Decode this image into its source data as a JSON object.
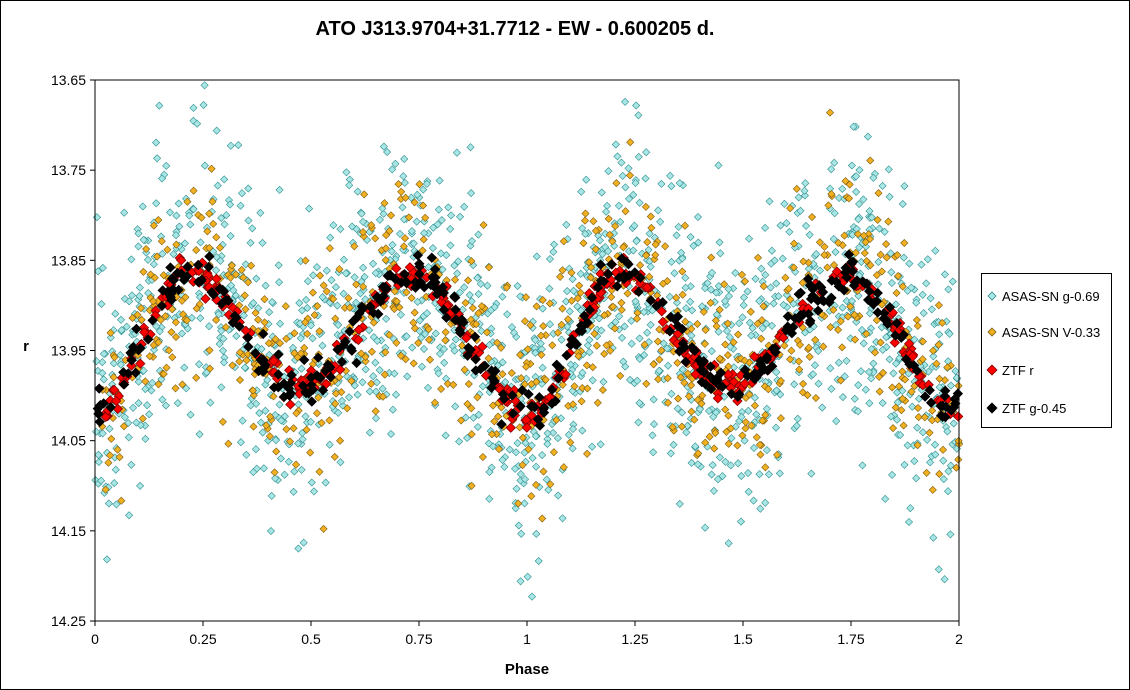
{
  "chart_data": {
    "type": "scatter",
    "title": "ATO J313.9704+31.7712  - EW - 0.600205 d.",
    "xlabel": "Phase",
    "ylabel": "r",
    "xlim": [
      0,
      2
    ],
    "ylim": [
      14.25,
      13.65
    ],
    "y_inverted": true,
    "x_ticks": [
      "0",
      "0.25",
      "0.5",
      "0.75",
      "1",
      "1.25",
      "1.5",
      "1.75",
      "2"
    ],
    "y_ticks": [
      "13.65",
      "13.75",
      "13.85",
      "13.95",
      "14.05",
      "14.15",
      "14.25"
    ],
    "grid": false,
    "legend_position": "right",
    "period_days": 0.600205,
    "light_curve_model": {
      "max_brightness_phase": [
        0.22,
        0.74
      ],
      "primary_minimum_phase": 0.0,
      "secondary_minimum_phase": 0.47,
      "ztf_r_max_mag": 13.865,
      "ztf_r_primary_min_mag": 14.02,
      "ztf_r_secondary_min_mag": 13.99
    },
    "series": [
      {
        "name": "ASAS-SN g-0.69",
        "marker": "diamond",
        "fill": "#a8e6e6",
        "stroke": "#2d8c8c",
        "approx_points": 1600,
        "scatter_mag": 0.11
      },
      {
        "name": "ASAS-SN V-0.33",
        "marker": "diamond",
        "fill": "#f0b020",
        "stroke": "#7a5a10",
        "approx_points": 850,
        "scatter_mag": 0.08
      },
      {
        "name": "ZTF r",
        "marker": "diamond",
        "fill": "#ff0000",
        "stroke": "#800000",
        "approx_points": 420,
        "scatter_mag": 0.012
      },
      {
        "name": "ZTF g-0.45",
        "marker": "diamond",
        "fill": "#000000",
        "stroke": "#000000",
        "approx_points": 360,
        "scatter_mag": 0.016
      }
    ]
  }
}
